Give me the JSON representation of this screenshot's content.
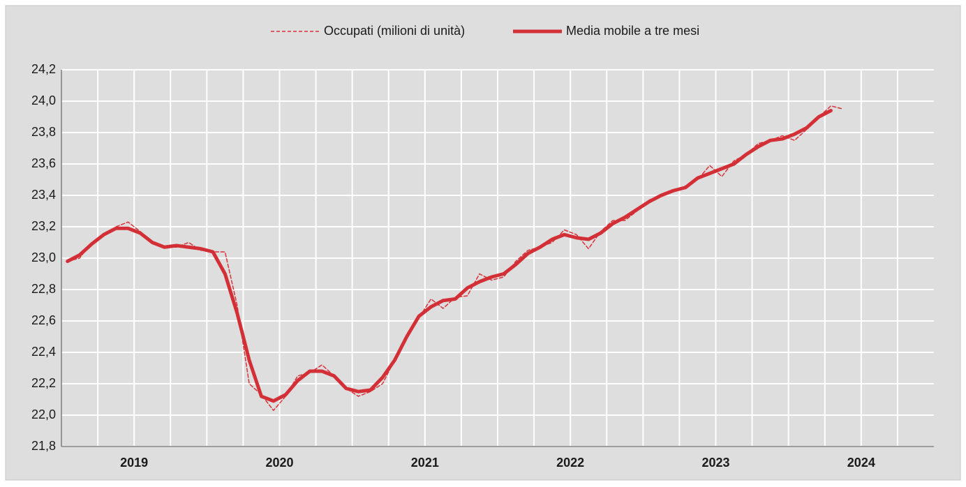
{
  "chart_data": {
    "type": "line",
    "categories": [
      null,
      null,
      null,
      null,
      null,
      null,
      null,
      null,
      null,
      null,
      null,
      null,
      null,
      null,
      null,
      null,
      null,
      null,
      null,
      null,
      null,
      null,
      null,
      null,
      null,
      null,
      null,
      null,
      null,
      null,
      null,
      null,
      null,
      null,
      null,
      null,
      null,
      null,
      null,
      null,
      null,
      null,
      null,
      null,
      null,
      null,
      null,
      null,
      null,
      null,
      null,
      null,
      null,
      null,
      null,
      null,
      null,
      null,
      null,
      null,
      null,
      null,
      null,
      null,
      null,
      null,
      null,
      null,
      null,
      null,
      null,
      null
    ],
    "year_labels": [
      "2019",
      "2020",
      "2021",
      "2022",
      "2023",
      "2024"
    ],
    "series": [
      {
        "name": "Occupati (milioni di unità)",
        "color": "#d9323a",
        "dashed": true,
        "values": [
          22.98,
          23.0,
          23.1,
          23.15,
          23.2,
          23.23,
          23.17,
          23.1,
          23.07,
          23.07,
          23.1,
          23.05,
          23.04,
          23.04,
          22.7,
          22.2,
          22.13,
          22.03,
          22.12,
          22.25,
          22.27,
          22.32,
          22.25,
          22.17,
          22.12,
          22.15,
          22.2,
          22.35,
          22.5,
          22.62,
          22.74,
          22.68,
          22.75,
          22.76,
          22.9,
          22.86,
          22.88,
          22.98,
          23.05,
          23.07,
          23.1,
          23.18,
          23.15,
          23.06,
          23.17,
          23.24,
          23.24,
          23.3,
          23.37,
          23.4,
          23.43,
          23.46,
          23.5,
          23.59,
          23.52,
          23.62,
          23.66,
          23.73,
          23.75,
          23.78,
          23.75,
          23.82,
          23.9,
          23.97,
          23.95,
          null,
          null,
          null,
          null,
          null,
          null,
          null
        ]
      },
      {
        "name": "Media mobile a tre mesi",
        "color": "#d32f36",
        "dashed": false,
        "values": [
          22.98,
          23.02,
          23.09,
          23.15,
          23.19,
          23.19,
          23.16,
          23.1,
          23.07,
          23.08,
          23.07,
          23.06,
          23.04,
          22.9,
          22.65,
          22.35,
          22.12,
          22.09,
          22.13,
          22.22,
          22.28,
          22.28,
          22.25,
          22.17,
          22.15,
          22.16,
          22.24,
          22.35,
          22.5,
          22.63,
          22.69,
          22.73,
          22.74,
          22.81,
          22.85,
          22.88,
          22.9,
          22.96,
          23.03,
          23.07,
          23.12,
          23.15,
          23.13,
          23.12,
          23.16,
          23.22,
          23.26,
          23.31,
          23.36,
          23.4,
          23.43,
          23.45,
          23.51,
          23.54,
          23.57,
          23.6,
          23.66,
          23.71,
          23.75,
          23.76,
          23.79,
          23.83,
          23.9,
          23.94,
          null,
          null,
          null,
          null,
          null,
          null,
          null,
          null
        ]
      }
    ],
    "ylim": [
      21.8,
      24.2
    ],
    "yticks": [
      {
        "value": 21.8,
        "label": "21,8"
      },
      {
        "value": 22.0,
        "label": "22,0"
      },
      {
        "value": 22.2,
        "label": "22,2"
      },
      {
        "value": 22.4,
        "label": "22,4"
      },
      {
        "value": 22.6,
        "label": "22,6"
      },
      {
        "value": 22.8,
        "label": "22,8"
      },
      {
        "value": 23.0,
        "label": "23,0"
      },
      {
        "value": 23.2,
        "label": "23,2"
      },
      {
        "value": 23.4,
        "label": "23,4"
      },
      {
        "value": 23.6,
        "label": "23,6"
      },
      {
        "value": 23.8,
        "label": "23,8"
      },
      {
        "value": 24.0,
        "label": "24,0"
      },
      {
        "value": 24.2,
        "label": "24,2"
      }
    ],
    "grid": true,
    "legend": "top"
  }
}
